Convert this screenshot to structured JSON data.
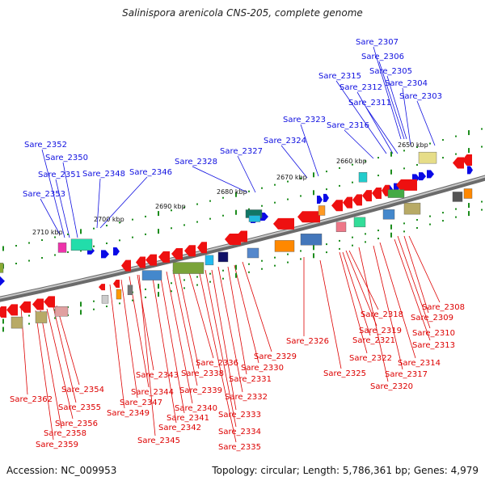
{
  "title": "Salinispora arenicola CNS-205, complete genome",
  "footer": {
    "accession": "Accession: NC_009953",
    "summary": "Topology: circular; Length: 5,786,361 bp; Genes: 4,979"
  },
  "colors": {
    "forward_label": "#1010e0",
    "reverse_label": "#dd0000",
    "backbone": "#808080",
    "tick": "#1c8c1c",
    "forward_gene": "#0a0ae6",
    "reverse_gene": "#ee1010"
  },
  "scale_labels": [
    "2710 kbp",
    "2700 kbp",
    "2690 kbp",
    "2680 kbp",
    "2670 kbp",
    "2660 kbp",
    "2650 kbp"
  ],
  "forward_genes": [
    "Sare_2307",
    "Sare_2306",
    "Sare_2305",
    "Sare_2315",
    "Sare_2304",
    "Sare_2312",
    "Sare_2303",
    "Sare_2311",
    "Sare_2323",
    "Sare_2316",
    "Sare_2324",
    "Sare_2352",
    "Sare_2327",
    "Sare_2350",
    "Sare_2328",
    "Sare_2351",
    "Sare_2348",
    "Sare_2346",
    "Sare_2353"
  ],
  "reverse_genes": [
    "Sare_2308",
    "Sare_2318",
    "Sare_2309",
    "Sare_2319",
    "Sare_2310",
    "Sare_2326",
    "Sare_2321",
    "Sare_2313",
    "Sare_2329",
    "Sare_2322",
    "Sare_2314",
    "Sare_2336",
    "Sare_2330",
    "Sare_2325",
    "Sare_2317",
    "Sare_2343",
    "Sare_2338",
    "Sare_2331",
    "Sare_2354",
    "Sare_2344",
    "Sare_2339",
    "Sare_2320",
    "Sare_2362",
    "Sare_2347",
    "Sare_2332",
    "Sare_2355",
    "Sare_2340",
    "Sare_2349",
    "Sare_2333",
    "Sare_2341",
    "Sare_2356",
    "Sare_2342",
    "Sare_2334",
    "Sare_2358",
    "Sare_2345",
    "Sare_2359",
    "Sare_2335"
  ]
}
